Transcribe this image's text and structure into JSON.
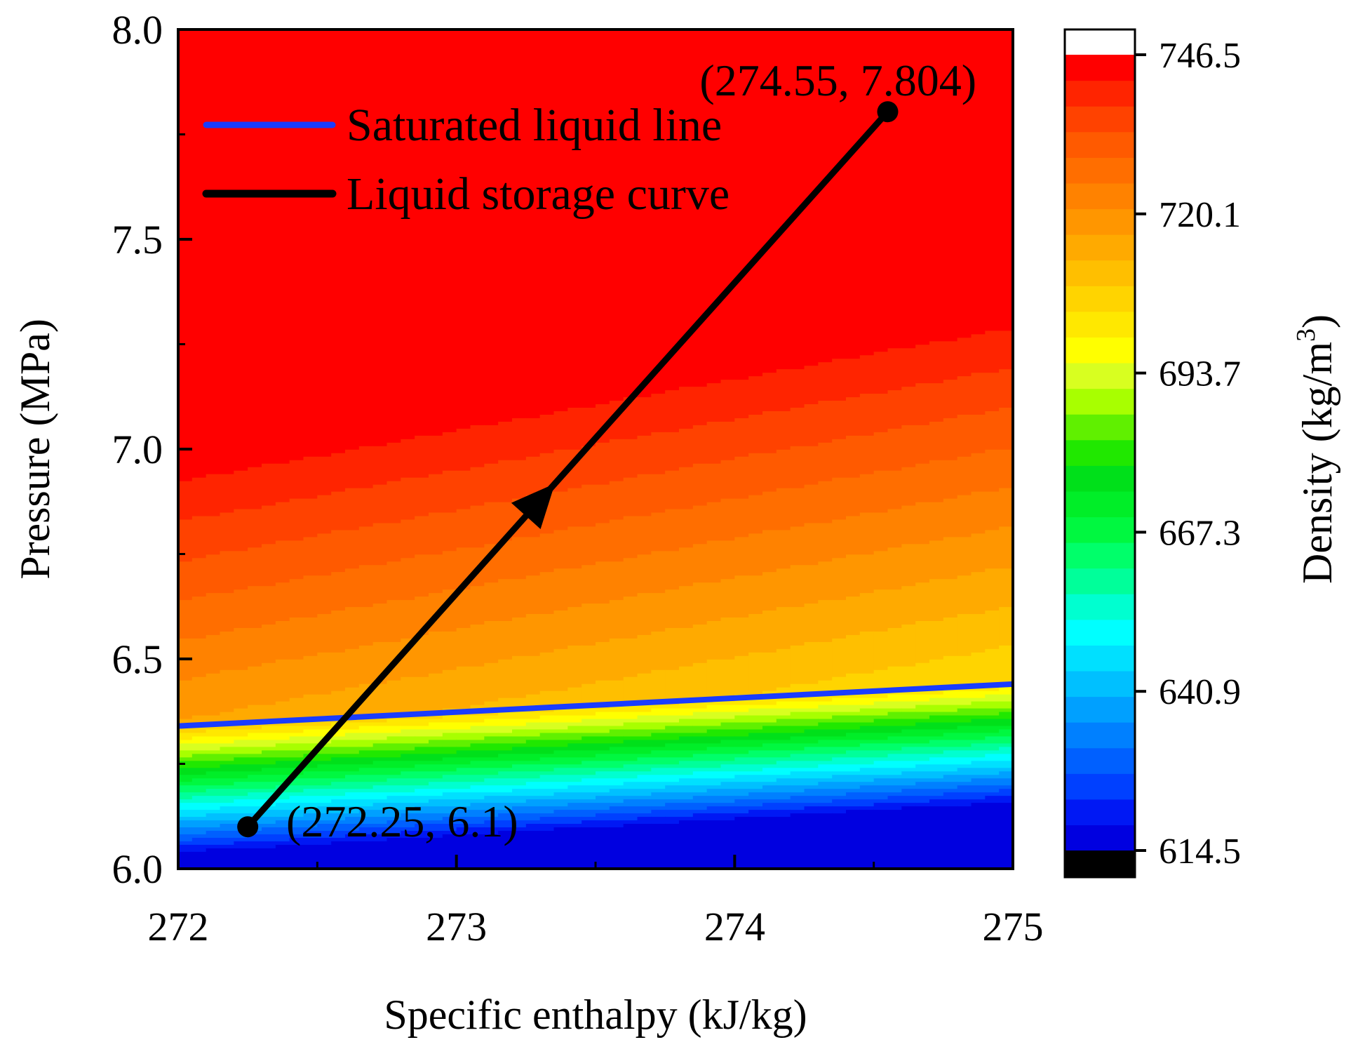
{
  "chart_data": {
    "type": "heatmap",
    "title": "",
    "xlabel": "Specific enthalpy (kJ/kg)",
    "ylabel": "Pressure (MPa)",
    "xlim": [
      272,
      275
    ],
    "ylim": [
      6.0,
      8.0
    ],
    "x_ticks": [
      "272",
      "273",
      "274",
      "275"
    ],
    "y_ticks": [
      "6.0",
      "6.5",
      "7.0",
      "7.5",
      "8.0"
    ],
    "colorbar": {
      "label": "Density (kg/m",
      "label_sup": "3",
      "label_close": ")",
      "range": [
        614.5,
        746.5
      ],
      "ticks": [
        "746.5",
        "720.1",
        "693.7",
        "667.3",
        "640.9",
        "614.5"
      ],
      "colors": [
        "#0000e0",
        "#0018f4",
        "#0040ff",
        "#0060ff",
        "#0080ff",
        "#00a0ff",
        "#00c0ff",
        "#00e0ff",
        "#00ffff",
        "#00ffd0",
        "#00ff9a",
        "#00ff6a",
        "#00f840",
        "#00ee28",
        "#00e01a",
        "#20e800",
        "#60f000",
        "#a8ff00",
        "#d8ff20",
        "#ffff00",
        "#ffe800",
        "#ffd400",
        "#ffbf00",
        "#ffaa00",
        "#ff9600",
        "#ff8200",
        "#ff6e00",
        "#ff5a00",
        "#ff4200",
        "#ff2400",
        "#ff0000"
      ],
      "under_color": "#000000",
      "over_color": "#ffffff"
    },
    "series": [
      {
        "name": "Saturated liquid line",
        "color": "#1a3cff",
        "x": [
          272,
          275
        ],
        "y": [
          6.34,
          6.44
        ]
      },
      {
        "name": "Liquid storage curve",
        "color": "#000000",
        "x": [
          272.25,
          274.55
        ],
        "y": [
          6.1,
          7.804
        ]
      }
    ],
    "annotations": [
      {
        "text": "(274.55, 7.804)"
      },
      {
        "text": "(272.25, 6.1)"
      }
    ],
    "legend_position": "upper-left"
  }
}
